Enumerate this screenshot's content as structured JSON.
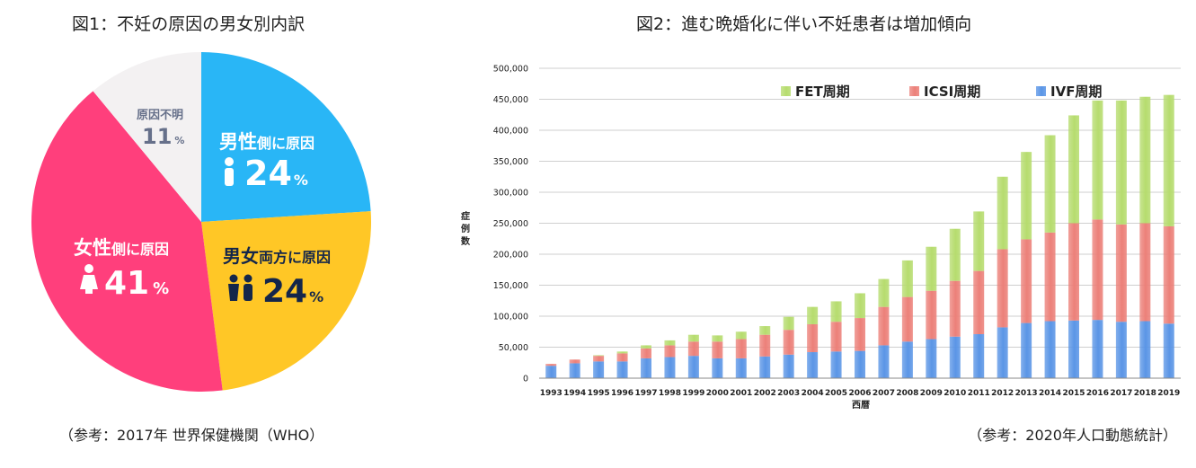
{
  "pie_title": "図1：不妊の原因の男女別内訳",
  "pie_note": "（参考：2017年 世界保健機関（WHO）",
  "bar_title": "図2：進む晩婚化に伴い不妊患者は増加傾向",
  "bar_note": "（参考：2020年人口動態統計）",
  "colors": {
    "male": "#29b6f6",
    "both": "#ffc726",
    "female": "#ff3f7c",
    "unknown": "#f3f1f2",
    "unknown_text": "#66708a",
    "ivf": "#5a95e6",
    "icsi": "#ec8079",
    "fet": "#b6dc6e"
  },
  "pie_labels": {
    "male_a": "男性",
    "male_b": "側に原因",
    "male_pct": "24",
    "both_a": "男女",
    "both_b": "両方に原因",
    "both_pct": "24",
    "female_a": "女性",
    "female_b": "側に原因",
    "female_pct": "41",
    "unknown": "原因不明",
    "unknown_pct": "11",
    "pct_sign": "%"
  },
  "chart_data": [
    {
      "type": "pie",
      "title": "図1：不妊の原因の男女別内訳",
      "slices": [
        {
          "label": "男性側に原因",
          "value": 24
        },
        {
          "label": "男女両方に原因",
          "value": 24
        },
        {
          "label": "女性側に原因",
          "value": 41
        },
        {
          "label": "原因不明",
          "value": 11
        }
      ]
    },
    {
      "type": "bar",
      "stacked": true,
      "title": "図2：進む晩婚化に伴い不妊患者は増加傾向",
      "xlabel": "西暦",
      "ylabel": "症例数",
      "ylim": [
        0,
        500000
      ],
      "yticks": [
        "0",
        "50,000",
        "100,000",
        "150,000",
        "200,000",
        "250,000",
        "300,000",
        "350,000",
        "400,000",
        "450,000",
        "500,000"
      ],
      "legend": "top",
      "grid": true,
      "categories": [
        "1993",
        "1994",
        "1995",
        "1996",
        "1997",
        "1998",
        "1999",
        "2000",
        "2001",
        "2002",
        "2003",
        "2004",
        "2005",
        "2006",
        "2007",
        "2008",
        "2009",
        "2010",
        "2011",
        "2012",
        "2013",
        "2014",
        "2015",
        "2016",
        "2017",
        "2018",
        "2019"
      ],
      "series": [
        {
          "name": "IVF周期",
          "values": [
            20000,
            24000,
            27000,
            27000,
            32000,
            34000,
            36000,
            32000,
            32000,
            35000,
            38000,
            42000,
            43000,
            44000,
            53000,
            59000,
            63000,
            67000,
            71000,
            82000,
            89000,
            92000,
            93000,
            94000,
            91000,
            92000,
            88000
          ]
        },
        {
          "name": "ICSI周期",
          "values": [
            3000,
            6000,
            9000,
            13000,
            16000,
            19000,
            23000,
            27000,
            31000,
            35000,
            40000,
            45000,
            48000,
            53000,
            62000,
            72000,
            78000,
            90000,
            102000,
            126000,
            135000,
            143000,
            157000,
            162000,
            157000,
            158000,
            157000
          ]
        },
        {
          "name": "FET周期",
          "values": [
            0,
            0,
            1000,
            3000,
            5000,
            8000,
            11000,
            10000,
            12000,
            14000,
            21000,
            28000,
            33000,
            40000,
            45000,
            59000,
            71000,
            84000,
            96000,
            117000,
            141000,
            157000,
            174000,
            192000,
            200000,
            204000,
            212000
          ]
        }
      ]
    }
  ]
}
